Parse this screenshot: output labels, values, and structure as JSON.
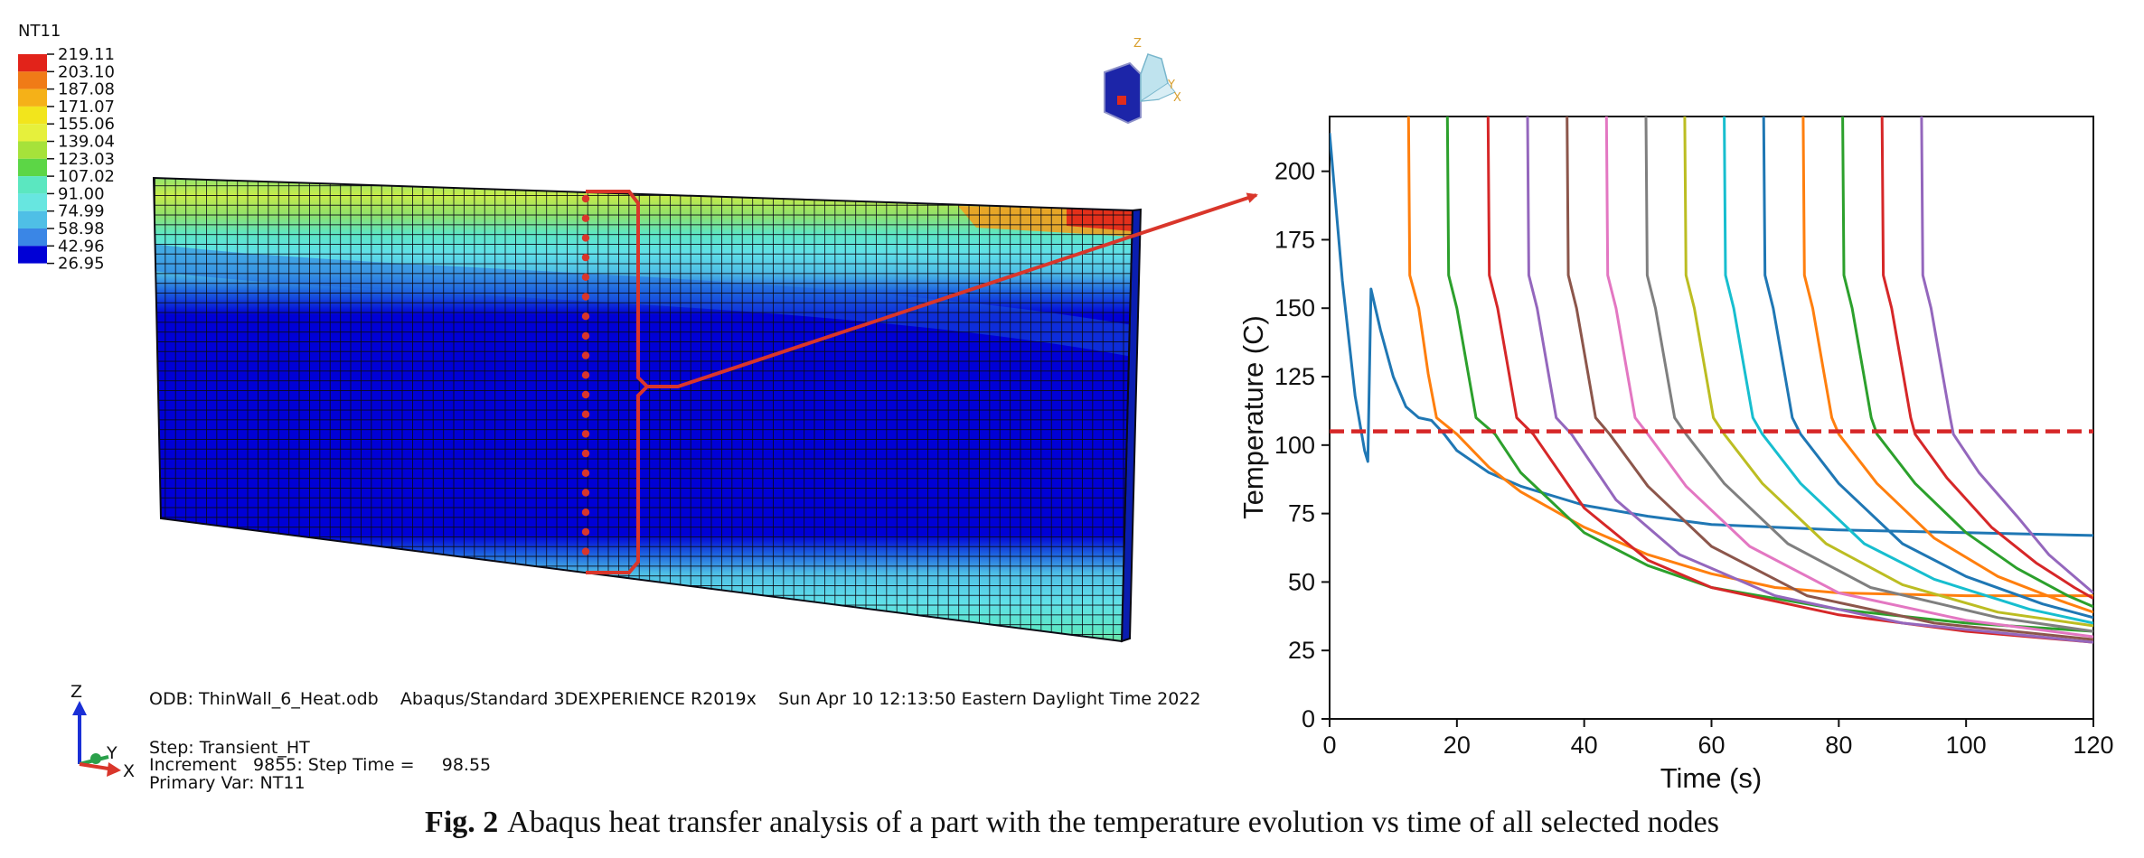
{
  "legend": {
    "title": "NT11",
    "values": [
      "219.11",
      "203.10",
      "187.08",
      "171.07",
      "155.06",
      "139.04",
      "123.03",
      "107.02",
      "91.00",
      "74.99",
      "58.98",
      "42.96",
      "26.95"
    ],
    "colors": [
      "#e2231a",
      "#f07b17",
      "#f5b118",
      "#f2e51c",
      "#e6f03c",
      "#a6e23a",
      "#5cd646",
      "#5be7c0",
      "#67e6e0",
      "#4fbfe6",
      "#3a86e6",
      "#0000d6"
    ]
  },
  "viewer": {
    "odb_line": "ODB: ThinWall_6_Heat.odb    Abaqus/Standard 3DEXPERIENCE R2019x    Sun Apr 10 12:13:50 Eastern Daylight Time 2022",
    "step_line": "Step: Transient_HT",
    "increment_line": "Increment   9855: Step Time =     98.55",
    "primary_var_line": "Primary Var: NT11",
    "triad_z": "Z",
    "triad_y": "Y",
    "triad_x": "X",
    "view_z": "Z",
    "view_y": "Y",
    "view_x": "X"
  },
  "caption": {
    "label": "Fig. 2",
    "text": "Abaqus heat transfer analysis of a part with the temperature evolution vs time of all selected nodes"
  },
  "chart_data": {
    "type": "line",
    "xlabel": "Time (s)",
    "ylabel": "Temperature (C)",
    "xlim": [
      0,
      120
    ],
    "ylim": [
      0,
      220
    ],
    "xticks": [
      0,
      20,
      40,
      60,
      80,
      100,
      120
    ],
    "yticks": [
      0,
      25,
      50,
      75,
      100,
      125,
      150,
      175,
      200
    ],
    "threshold": {
      "y": 105,
      "color": "#d62728",
      "style": "dashed"
    },
    "series": [
      {
        "color": "#1f77b4",
        "x": [
          0,
          2,
          4,
          5.5,
          6,
          6.5,
          8,
          10,
          12,
          14,
          16,
          18,
          20,
          25,
          30,
          40,
          50,
          60,
          80,
          100,
          120
        ],
        "y": [
          214,
          160,
          118,
          98,
          94,
          157,
          142,
          125,
          114,
          110,
          109,
          104,
          98,
          90,
          85,
          78,
          74,
          71,
          69,
          68,
          67
        ]
      },
      {
        "color": "#ff7f0e",
        "x": [
          12.4,
          12.6,
          14,
          15.5,
          16.8,
          20,
          25,
          30,
          40,
          50,
          60,
          70,
          80,
          100,
          120
        ],
        "y": [
          220,
          162,
          150,
          126,
          110,
          104,
          92,
          83,
          70,
          60,
          53,
          48,
          46,
          45,
          45
        ]
      },
      {
        "color": "#2ca02c",
        "x": [
          18.5,
          18.7,
          20,
          21.8,
          23,
          26,
          30,
          40,
          50,
          60,
          80,
          100,
          120
        ],
        "y": [
          220,
          162,
          150,
          126,
          110,
          104,
          90,
          68,
          56,
          48,
          40,
          35,
          32
        ]
      },
      {
        "color": "#d62728",
        "x": [
          24.9,
          25.1,
          26.4,
          28.2,
          29.4,
          32,
          40,
          50,
          60,
          80,
          100,
          120
        ],
        "y": [
          220,
          162,
          150,
          126,
          110,
          104,
          77,
          58,
          48,
          38,
          32,
          28
        ]
      },
      {
        "color": "#9467bd",
        "x": [
          31.1,
          31.3,
          32.6,
          34.4,
          35.6,
          38,
          45,
          55,
          70,
          90,
          120
        ],
        "y": [
          220,
          162,
          150,
          126,
          110,
          104,
          80,
          60,
          45,
          35,
          28
        ]
      },
      {
        "color": "#8c564b",
        "x": [
          37.3,
          37.5,
          38.8,
          40.6,
          41.8,
          44,
          50,
          60,
          75,
          95,
          120
        ],
        "y": [
          220,
          162,
          150,
          126,
          110,
          104,
          85,
          63,
          45,
          35,
          29
        ]
      },
      {
        "color": "#e377c2",
        "x": [
          43.5,
          43.7,
          45,
          46.8,
          48,
          50,
          56,
          66,
          80,
          100,
          120
        ],
        "y": [
          220,
          162,
          150,
          126,
          110,
          104,
          85,
          63,
          46,
          36,
          30
        ]
      },
      {
        "color": "#7f7f7f",
        "x": [
          49.7,
          49.9,
          51.2,
          53,
          54.2,
          56,
          62,
          72,
          85,
          105,
          120
        ],
        "y": [
          220,
          162,
          150,
          126,
          110,
          104,
          86,
          64,
          48,
          37,
          32
        ]
      },
      {
        "color": "#bcbd22",
        "x": [
          55.8,
          56,
          57.3,
          59.1,
          60.3,
          62,
          68,
          78,
          90,
          105,
          120
        ],
        "y": [
          220,
          162,
          150,
          126,
          110,
          104,
          86,
          64,
          49,
          39,
          34
        ]
      },
      {
        "color": "#17becf",
        "x": [
          62,
          62.2,
          63.5,
          65.3,
          66.5,
          68,
          74,
          84,
          95,
          110,
          120
        ],
        "y": [
          220,
          162,
          150,
          126,
          110,
          104,
          86,
          64,
          51,
          40,
          35
        ]
      },
      {
        "color": "#1f77b4",
        "x": [
          68.2,
          68.4,
          69.7,
          71.5,
          72.7,
          74,
          80,
          90,
          100,
          112,
          120
        ],
        "y": [
          220,
          162,
          150,
          126,
          110,
          104,
          86,
          64,
          52,
          42,
          37
        ]
      },
      {
        "color": "#ff7f0e",
        "x": [
          74.4,
          74.6,
          75.9,
          77.7,
          78.9,
          80,
          86,
          95,
          105,
          115,
          120
        ],
        "y": [
          220,
          162,
          150,
          126,
          110,
          104,
          86,
          66,
          52,
          43,
          39
        ]
      },
      {
        "color": "#2ca02c",
        "x": [
          80.6,
          80.8,
          82.1,
          83.9,
          85.1,
          86,
          92,
          100,
          108,
          116,
          120
        ],
        "y": [
          220,
          162,
          150,
          126,
          110,
          104,
          86,
          68,
          55,
          45,
          41
        ]
      },
      {
        "color": "#d62728",
        "x": [
          86.8,
          87,
          88.3,
          90.1,
          91.3,
          92,
          97,
          104,
          111,
          117,
          120
        ],
        "y": [
          220,
          162,
          150,
          126,
          110,
          104,
          88,
          70,
          57,
          48,
          44
        ]
      },
      {
        "color": "#9467bd",
        "x": [
          93,
          93.2,
          94.5,
          96.3,
          97.5,
          98,
          102,
          108,
          113,
          118,
          120
        ],
        "y": [
          220,
          162,
          150,
          126,
          110,
          104,
          90,
          74,
          60,
          50,
          46
        ]
      }
    ]
  }
}
